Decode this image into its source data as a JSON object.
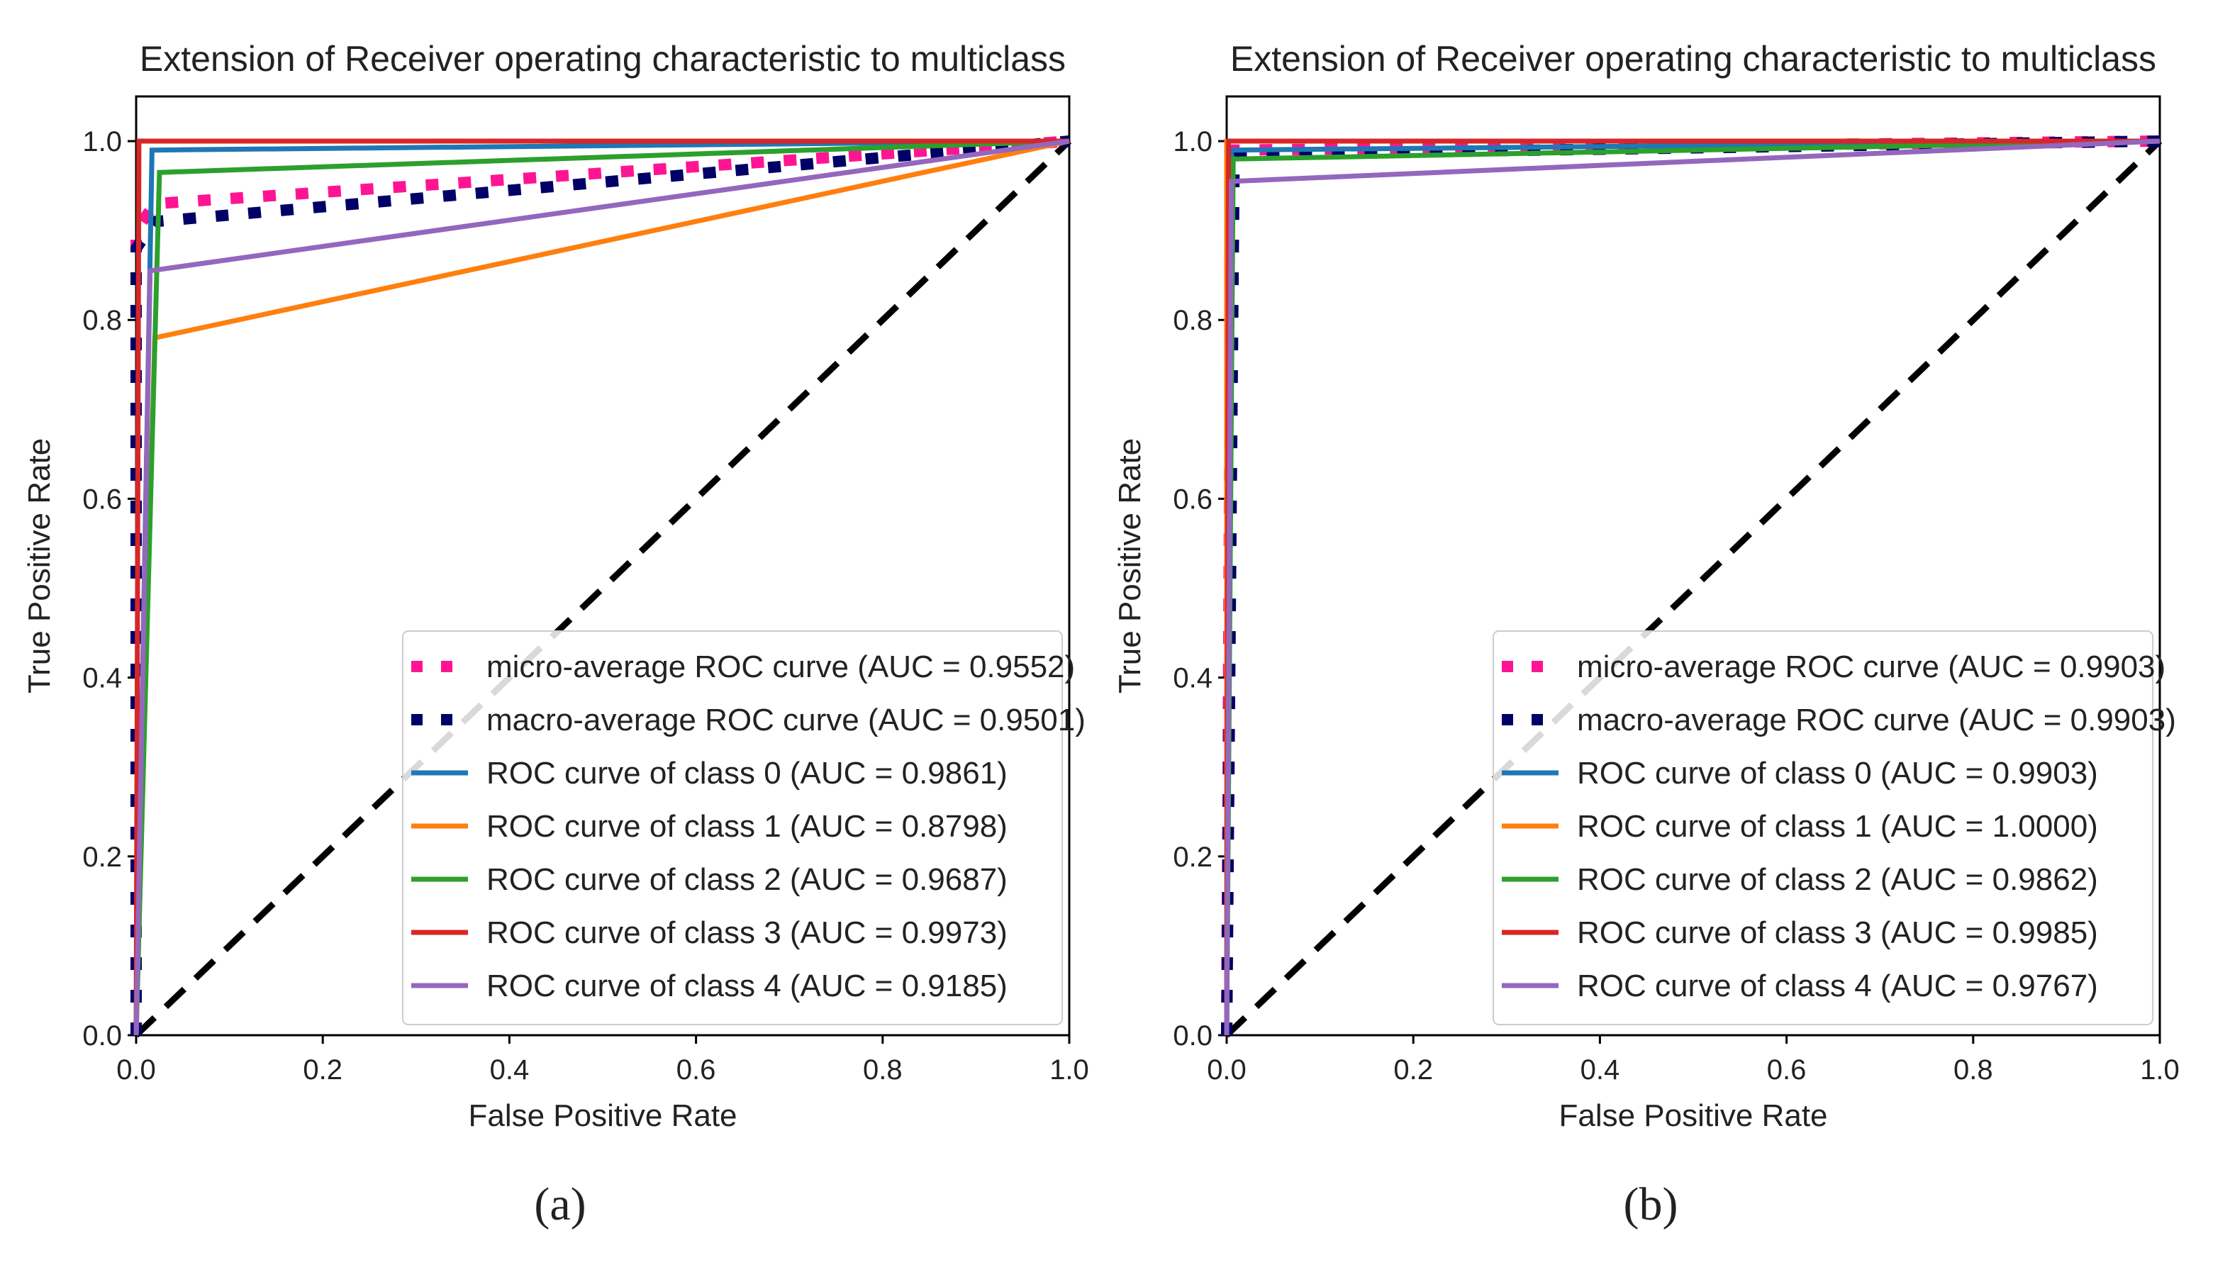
{
  "figure": {
    "panel_labels": [
      "(a)",
      "(b)"
    ]
  },
  "chart_data": [
    {
      "type": "line",
      "title": "Extension of Receiver operating characteristic to multiclass",
      "xlabel": "False Positive Rate",
      "ylabel": "True Positive Rate",
      "xlim": [
        0.0,
        1.0
      ],
      "ylim": [
        0.0,
        1.05
      ],
      "xticks": [
        "0.0",
        "0.2",
        "0.4",
        "0.6",
        "0.8",
        "1.0"
      ],
      "yticks": [
        "0.0",
        "0.2",
        "0.4",
        "0.6",
        "0.8",
        "1.0"
      ],
      "legend_position": "lower-right",
      "series": [
        {
          "name": "micro-average ROC curve (AUC = 0.9552)",
          "color": "#ff1493",
          "style": "dotted",
          "x": [
            0,
            0.0,
            0.02,
            1.0
          ],
          "y": [
            0,
            0.9,
            0.93,
            1.0
          ]
        },
        {
          "name": "macro-average ROC curve (AUC = 0.9501)",
          "color": "#000066",
          "style": "dotted",
          "x": [
            0,
            0.0,
            0.02,
            1.0
          ],
          "y": [
            0,
            0.88,
            0.91,
            1.0
          ]
        },
        {
          "name": "ROC curve of class 0 (AUC = 0.9861)",
          "color": "#1f77b4",
          "style": "solid",
          "x": [
            0,
            0.017,
            1.0
          ],
          "y": [
            0,
            0.99,
            1.0
          ]
        },
        {
          "name": "ROC curve of class 1 (AUC = 0.8798)",
          "color": "#ff7f0e",
          "style": "solid",
          "x": [
            0,
            0.02,
            1.0
          ],
          "y": [
            0,
            0.78,
            1.0
          ]
        },
        {
          "name": "ROC curve of class 2 (AUC = 0.9687)",
          "color": "#2ca02c",
          "style": "solid",
          "x": [
            0,
            0.025,
            1.0
          ],
          "y": [
            0,
            0.965,
            1.0
          ]
        },
        {
          "name": "ROC curve of class 3 (AUC = 0.9973)",
          "color": "#d62728",
          "style": "solid",
          "x": [
            0,
            0.003,
            1.0
          ],
          "y": [
            0,
            1.0,
            1.0
          ]
        },
        {
          "name": "ROC curve of class 4 (AUC = 0.9185)",
          "color": "#9467bd",
          "style": "solid",
          "x": [
            0,
            0.015,
            1.0
          ],
          "y": [
            0,
            0.855,
            1.0
          ]
        }
      ],
      "baseline": {
        "x": [
          0,
          1
        ],
        "y": [
          0,
          1
        ],
        "color": "#000000",
        "style": "dashed"
      }
    },
    {
      "type": "line",
      "title": "Extension of Receiver operating characteristic to multiclass",
      "xlabel": "False Positive Rate",
      "ylabel": "True Positive Rate",
      "xlim": [
        0.0,
        1.0
      ],
      "ylim": [
        0.0,
        1.05
      ],
      "xticks": [
        "0.0",
        "0.2",
        "0.4",
        "0.6",
        "0.8",
        "1.0"
      ],
      "yticks": [
        "0.0",
        "0.2",
        "0.4",
        "0.6",
        "0.8",
        "1.0"
      ],
      "legend_position": "lower-right",
      "series": [
        {
          "name": "micro-average ROC curve (AUC = 0.9903)",
          "color": "#ff1493",
          "style": "dotted",
          "x": [
            0,
            0.005,
            1.0
          ],
          "y": [
            0,
            0.99,
            1.0
          ]
        },
        {
          "name": "macro-average ROC curve (AUC = 0.9903)",
          "color": "#000066",
          "style": "dotted",
          "x": [
            0,
            0.008,
            1.0
          ],
          "y": [
            0,
            0.985,
            1.0
          ]
        },
        {
          "name": "ROC curve of class 0 (AUC = 0.9903)",
          "color": "#1f77b4",
          "style": "solid",
          "x": [
            0,
            0.005,
            1.0
          ],
          "y": [
            0,
            0.99,
            1.0
          ]
        },
        {
          "name": "ROC curve of class 1 (AUC = 1.0000)",
          "color": "#ff7f0e",
          "style": "solid",
          "x": [
            0,
            0.0,
            1.0
          ],
          "y": [
            0,
            1.0,
            1.0
          ]
        },
        {
          "name": "ROC curve of class 2 (AUC = 0.9862)",
          "color": "#2ca02c",
          "style": "solid",
          "x": [
            0,
            0.007,
            1.0
          ],
          "y": [
            0,
            0.98,
            1.0
          ]
        },
        {
          "name": "ROC curve of class 3 (AUC = 0.9985)",
          "color": "#d62728",
          "style": "solid",
          "x": [
            0,
            0.002,
            1.0
          ],
          "y": [
            0,
            1.0,
            1.0
          ]
        },
        {
          "name": "ROC curve of class 4 (AUC = 0.9767)",
          "color": "#9467bd",
          "style": "solid",
          "x": [
            0,
            0.005,
            1.0
          ],
          "y": [
            0,
            0.955,
            1.0
          ]
        }
      ],
      "baseline": {
        "x": [
          0,
          1
        ],
        "y": [
          0,
          1
        ],
        "color": "#000000",
        "style": "dashed"
      }
    }
  ]
}
